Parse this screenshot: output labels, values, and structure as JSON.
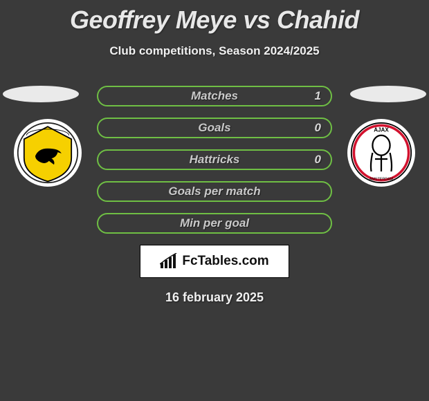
{
  "title": "Geoffrey Meye vs Chahid",
  "subtitle": "Club competitions, Season 2024/2025",
  "date": "16 february 2025",
  "brand": "FcTables.com",
  "colors": {
    "row_border": "#6fbf44",
    "row_fill": "#3a3a3a",
    "label_text": "#c9c9c9",
    "value_text": "#d8d8d8"
  },
  "stats": [
    {
      "label": "Matches",
      "right_value": "1"
    },
    {
      "label": "Goals",
      "right_value": "0"
    },
    {
      "label": "Hattricks",
      "right_value": "0"
    },
    {
      "label": "Goals per match",
      "right_value": ""
    },
    {
      "label": "Min per goal",
      "right_value": ""
    }
  ],
  "clubs": {
    "left": {
      "name": "SC Cambuur",
      "badge_bg": "#ffffff",
      "badge_main": "#f6d000",
      "badge_accent": "#000000"
    },
    "right": {
      "name": "Ajax",
      "badge_bg": "#ffffff",
      "badge_main": "#d2122e",
      "badge_accent": "#000000"
    }
  }
}
